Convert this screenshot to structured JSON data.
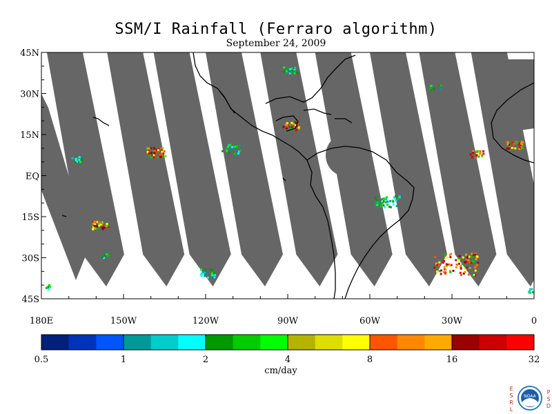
{
  "title": "SSM/I Rainfall (Ferraro algorithm)",
  "subtitle": "September 24, 2009",
  "map": {
    "lon_range": [
      -180,
      0
    ],
    "lat_range": [
      -45,
      45
    ],
    "lat_ticks": [
      {
        "value": 45,
        "label": "45N"
      },
      {
        "value": 30,
        "label": "30N"
      },
      {
        "value": 15,
        "label": "15N"
      },
      {
        "value": 0,
        "label": "EQ"
      },
      {
        "value": -15,
        "label": "15S"
      },
      {
        "value": -30,
        "label": "30S"
      },
      {
        "value": -45,
        "label": "45S"
      }
    ],
    "lon_ticks": [
      {
        "value": -180,
        "label": "180E"
      },
      {
        "value": -150,
        "label": "150W"
      },
      {
        "value": -120,
        "label": "120W"
      },
      {
        "value": -90,
        "label": "90W"
      },
      {
        "value": -60,
        "label": "60W"
      },
      {
        "value": -30,
        "label": "30W"
      },
      {
        "value": 0,
        "label": "0"
      }
    ],
    "no_data_color": "#666666",
    "coast_color": "#000000"
  },
  "colorbar": {
    "unit_label": "cm/day",
    "tick_labels": [
      "0.5",
      "1",
      "2",
      "4",
      "8",
      "16",
      "32"
    ],
    "colors": [
      "#00207a",
      "#0033bb",
      "#0055ff",
      "#009999",
      "#00cccc",
      "#00ffff",
      "#009900",
      "#00cc00",
      "#00ff00",
      "#b3b300",
      "#dddd00",
      "#ffff00",
      "#ff5500",
      "#ff8800",
      "#ffaa00",
      "#990000",
      "#cc0000",
      "#ff0000"
    ]
  },
  "logo": {
    "left_letters": [
      "E",
      "S",
      "R",
      "L"
    ],
    "right_letters": [
      "P",
      "S",
      "D"
    ],
    "badge_text": "NOAA"
  }
}
